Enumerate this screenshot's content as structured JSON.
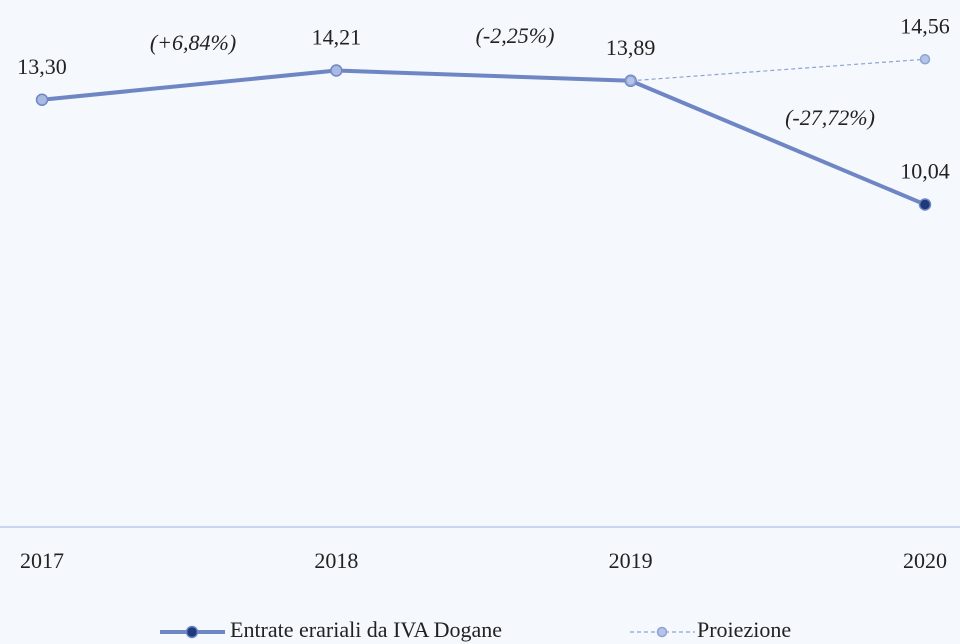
{
  "chart_data": {
    "type": "line",
    "categories": [
      "2017",
      "2018",
      "2019",
      "2020"
    ],
    "series": [
      {
        "name": "Entrate erariali da IVA Dogane",
        "color": "#6f86c4",
        "style": "solid",
        "marker_colors": [
          "#a9b9e0",
          "#a9b9e0",
          "#a9b9e0",
          "#1f3a7a"
        ],
        "values": [
          13.3,
          14.21,
          13.89,
          10.04
        ],
        "value_labels": [
          "13,30",
          "14,21",
          "13,89",
          "10,04"
        ]
      },
      {
        "name": "Proiezione",
        "color": "#8ea3d6",
        "style": "dashed",
        "marker_colors": [
          null,
          null,
          "#b4c3e6",
          "#b4c3e6"
        ],
        "values": [
          null,
          null,
          13.89,
          14.56
        ],
        "value_labels": [
          null,
          null,
          null,
          "14,56"
        ]
      }
    ],
    "annotations": [
      "(+6,84%)",
      "(-2,25%)",
      "(-27,72%)"
    ],
    "ylim": [
      0,
      16
    ]
  }
}
